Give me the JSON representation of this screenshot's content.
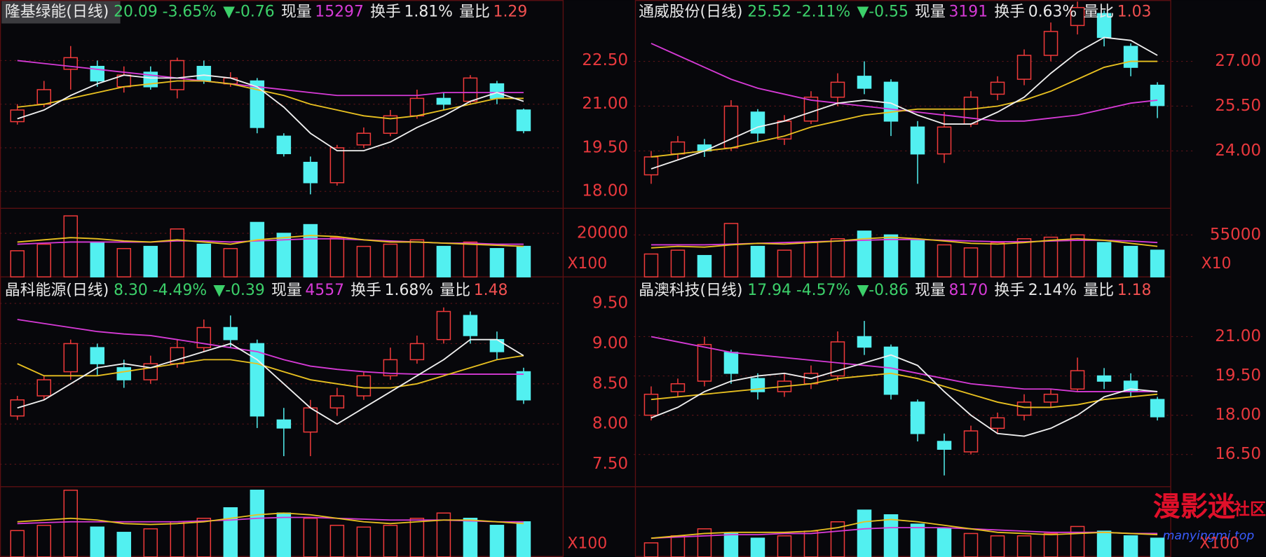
{
  "panels": [
    {
      "name": "隆基绿能(日线)",
      "price": "20.09",
      "change_pct": "-3.65%",
      "change": "▼-0.76",
      "vol_label": "现量",
      "volume": "15297",
      "turn_label": "换手",
      "turnover": "1.81%",
      "ratio_label": "量比",
      "ratio": "1.29",
      "ylim": [
        17.42,
        24.58
      ],
      "yticks": [
        {
          "value": 22.5,
          "label": "22.50"
        },
        {
          "value": 21,
          "label": "21.00"
        },
        {
          "value": 19.5,
          "label": "19.50"
        },
        {
          "value": 18,
          "label": "18.00"
        }
      ],
      "vol_ylim": [
        0,
        31480
      ],
      "vol_ticks": [
        20000
      ],
      "vol_unit": "X100",
      "candles": [
        [
          20.4,
          21.0,
          20.3,
          20.8
        ],
        [
          21.0,
          21.8,
          20.9,
          21.5
        ],
        [
          22.2,
          23.0,
          21.5,
          22.6
        ],
        [
          22.3,
          22.5,
          21.6,
          21.8
        ],
        [
          21.6,
          22.3,
          21.4,
          22.0
        ],
        [
          22.1,
          22.3,
          21.5,
          21.6
        ],
        [
          21.5,
          22.6,
          21.2,
          22.5
        ],
        [
          22.3,
          22.5,
          21.7,
          21.8
        ],
        [
          21.7,
          22.1,
          21.6,
          21.9
        ],
        [
          21.8,
          21.9,
          20.0,
          20.2
        ],
        [
          19.9,
          20.0,
          19.2,
          19.3
        ],
        [
          19.0,
          19.2,
          17.9,
          18.3
        ],
        [
          18.3,
          19.6,
          18.2,
          19.5
        ],
        [
          19.6,
          20.2,
          19.5,
          20.0
        ],
        [
          20.0,
          20.8,
          19.9,
          20.6
        ],
        [
          20.6,
          21.5,
          20.5,
          21.2
        ],
        [
          21.2,
          21.4,
          20.8,
          21.0
        ],
        [
          21.1,
          22.0,
          21.0,
          21.9
        ],
        [
          21.7,
          21.8,
          21.0,
          21.2
        ],
        [
          20.8,
          20.85,
          20.0,
          20.09
        ]
      ],
      "ma5": [
        20.5,
        20.8,
        21.3,
        21.7,
        22.0,
        21.9,
        21.9,
        22.0,
        21.9,
        21.6,
        20.9,
        20.0,
        19.4,
        19.4,
        19.7,
        20.2,
        20.6,
        21.1,
        21.4,
        21.1
      ],
      "ma20": [
        20.9,
        21.0,
        21.2,
        21.4,
        21.6,
        21.7,
        21.8,
        21.8,
        21.7,
        21.5,
        21.3,
        21.0,
        20.8,
        20.6,
        20.5,
        20.6,
        20.8,
        21.0,
        21.2,
        21.2
      ],
      "ma60": [
        22.5,
        22.4,
        22.3,
        22.2,
        22.1,
        22.0,
        21.9,
        21.8,
        21.7,
        21.6,
        21.5,
        21.4,
        21.3,
        21.3,
        21.3,
        21.3,
        21.4,
        21.4,
        21.4,
        21.4
      ],
      "vol": [
        12000,
        15000,
        28000,
        16000,
        13000,
        14000,
        22000,
        15000,
        13000,
        25000,
        20000,
        24000,
        18000,
        14000,
        15000,
        17000,
        14000,
        16000,
        13000,
        14000
      ],
      "vma1": [
        16000,
        17000,
        18000,
        17500,
        16500,
        16000,
        17000,
        16000,
        15000,
        17000,
        18000,
        19000,
        18500,
        17000,
        16000,
        16000,
        15500,
        15000,
        14500,
        14000
      ],
      "vma2": [
        15000,
        15500,
        16000,
        16000,
        16000,
        16000,
        16500,
        16500,
        16000,
        16500,
        17000,
        17500,
        17500,
        17000,
        16500,
        16000,
        15500,
        15500,
        15000,
        15000
      ]
    },
    {
      "name": "通威股份(日线)",
      "price": "25.52",
      "change_pct": "-2.11%",
      "change": "▼-0.55",
      "vol_label": "现量",
      "volume": "3191",
      "turn_label": "换手",
      "turnover": "0.63%",
      "ratio_label": "量比",
      "ratio": "1.03",
      "ylim": [
        22.08,
        29.05
      ],
      "yticks": [
        {
          "value": 27,
          "label": "27.00"
        },
        {
          "value": 25.5,
          "label": "25.50"
        },
        {
          "value": 24,
          "label": "24.00"
        }
      ],
      "vol_ylim": [
        0,
        89900
      ],
      "vol_ticks": [
        55000
      ],
      "vol_unit": "X10",
      "candles": [
        [
          23.2,
          24.0,
          22.9,
          23.8
        ],
        [
          23.9,
          24.5,
          23.7,
          24.3
        ],
        [
          24.2,
          24.4,
          23.8,
          24.0
        ],
        [
          24.1,
          25.7,
          24.0,
          25.5
        ],
        [
          25.3,
          25.4,
          24.3,
          24.6
        ],
        [
          24.4,
          25.2,
          24.2,
          25.0
        ],
        [
          25.0,
          26.0,
          24.9,
          25.8
        ],
        [
          25.8,
          26.6,
          25.5,
          26.3
        ],
        [
          26.5,
          27.0,
          25.9,
          26.1
        ],
        [
          26.3,
          26.4,
          24.5,
          25.0
        ],
        [
          24.8,
          25.0,
          22.9,
          23.9
        ],
        [
          23.9,
          25.3,
          23.6,
          24.8
        ],
        [
          24.9,
          26.0,
          24.8,
          25.8
        ],
        [
          25.9,
          26.5,
          25.7,
          26.3
        ],
        [
          26.4,
          27.4,
          26.2,
          27.2
        ],
        [
          27.2,
          28.3,
          27.0,
          28.0
        ],
        [
          28.2,
          29.0,
          27.9,
          28.8
        ],
        [
          28.6,
          28.7,
          27.5,
          27.8
        ],
        [
          27.5,
          27.6,
          26.5,
          26.8
        ],
        [
          26.2,
          26.3,
          25.1,
          25.52
        ]
      ],
      "ma5": [
        23.4,
        23.7,
        24.0,
        24.4,
        24.8,
        25.0,
        25.3,
        25.6,
        25.7,
        25.6,
        25.2,
        24.9,
        24.9,
        25.3,
        25.8,
        26.6,
        27.3,
        27.8,
        27.7,
        27.2
      ],
      "ma20": [
        23.8,
        23.9,
        24.0,
        24.1,
        24.3,
        24.5,
        24.8,
        25.0,
        25.2,
        25.3,
        25.4,
        25.4,
        25.4,
        25.5,
        25.7,
        26.0,
        26.4,
        26.8,
        27.0,
        27.0
      ],
      "ma60": [
        27.6,
        27.2,
        26.8,
        26.4,
        26.1,
        25.9,
        25.7,
        25.6,
        25.5,
        25.4,
        25.3,
        25.2,
        25.1,
        25.0,
        25.0,
        25.1,
        25.2,
        25.4,
        25.6,
        25.7
      ],
      "vol": [
        30000,
        35000,
        28000,
        70000,
        40000,
        35000,
        45000,
        50000,
        60000,
        55000,
        48000,
        42000,
        38000,
        45000,
        50000,
        52000,
        55000,
        45000,
        40000,
        35000
      ],
      "vma1": [
        38000,
        40000,
        39000,
        42000,
        44000,
        43000,
        45000,
        47000,
        50000,
        52000,
        50000,
        47000,
        44000,
        43000,
        45000,
        48000,
        50000,
        48000,
        44000,
        40000
      ],
      "vma2": [
        42000,
        42000,
        42000,
        43000,
        44000,
        45000,
        46000,
        47000,
        48000,
        49000,
        49000,
        48000,
        47000,
        46000,
        46000,
        47000,
        48000,
        48000,
        47000,
        45000
      ]
    },
    {
      "name": "晶科能源(日线)",
      "price": "8.30",
      "change_pct": "-4.49%",
      "change": "▼-0.39",
      "vol_label": "现量",
      "volume": "4557",
      "turn_label": "换手",
      "turnover": "1.68%",
      "ratio_label": "量比",
      "ratio": "1.48",
      "ylim": [
        7.22,
        9.81
      ],
      "yticks": [
        {
          "value": 9.5,
          "label": "9.50"
        },
        {
          "value": 9,
          "label": "9.00"
        },
        {
          "value": 8.5,
          "label": "8.50"
        },
        {
          "value": 8,
          "label": "8.00"
        },
        {
          "value": 7.5,
          "label": "7.50"
        }
      ],
      "vol_ylim": [
        0,
        40000
      ],
      "vol_ticks": [],
      "vol_unit": "X100",
      "candles": [
        [
          8.1,
          8.35,
          8.05,
          8.3
        ],
        [
          8.35,
          8.6,
          8.3,
          8.55
        ],
        [
          8.65,
          9.05,
          8.55,
          9.0
        ],
        [
          8.95,
          9.0,
          8.6,
          8.75
        ],
        [
          8.7,
          8.8,
          8.45,
          8.55
        ],
        [
          8.55,
          8.85,
          8.5,
          8.75
        ],
        [
          8.75,
          9.05,
          8.7,
          8.95
        ],
        [
          8.95,
          9.3,
          8.9,
          9.2
        ],
        [
          9.2,
          9.35,
          8.95,
          9.05
        ],
        [
          9.0,
          9.05,
          7.95,
          8.1
        ],
        [
          8.05,
          8.2,
          7.6,
          7.95
        ],
        [
          7.9,
          8.3,
          7.6,
          8.2
        ],
        [
          8.2,
          8.45,
          8.1,
          8.35
        ],
        [
          8.35,
          8.65,
          8.3,
          8.6
        ],
        [
          8.6,
          8.95,
          8.55,
          8.8
        ],
        [
          8.8,
          9.1,
          8.75,
          9.0
        ],
        [
          9.05,
          9.45,
          9.0,
          9.4
        ],
        [
          9.35,
          9.4,
          9.0,
          9.1
        ],
        [
          9.05,
          9.15,
          8.8,
          8.9
        ],
        [
          8.65,
          8.7,
          8.25,
          8.3
        ]
      ],
      "ma5": [
        8.2,
        8.3,
        8.5,
        8.7,
        8.75,
        8.7,
        8.8,
        8.9,
        9.0,
        8.8,
        8.5,
        8.2,
        8.0,
        8.2,
        8.4,
        8.6,
        8.8,
        9.05,
        9.05,
        8.85
      ],
      "ma20": [
        8.75,
        8.6,
        8.6,
        8.6,
        8.65,
        8.7,
        8.75,
        8.8,
        8.8,
        8.75,
        8.65,
        8.55,
        8.5,
        8.45,
        8.45,
        8.5,
        8.6,
        8.7,
        8.8,
        8.85
      ],
      "ma60": [
        9.3,
        9.25,
        9.2,
        9.15,
        9.12,
        9.1,
        9.05,
        9.0,
        8.95,
        8.9,
        8.8,
        8.72,
        8.68,
        8.65,
        8.63,
        8.62,
        8.62,
        8.62,
        8.62,
        8.62
      ],
      "vol": [
        15000,
        18000,
        38000,
        17000,
        14000,
        16000,
        20000,
        22000,
        28000,
        38000,
        25000,
        22000,
        18000,
        17000,
        18000,
        22000,
        25000,
        22000,
        18000,
        20000
      ],
      "vma1": [
        20000,
        21000,
        22000,
        21000,
        19000,
        18500,
        19000,
        20000,
        22000,
        24000,
        25000,
        24000,
        22000,
        20000,
        19000,
        20000,
        21000,
        21000,
        20000,
        19000
      ],
      "vma2": [
        19000,
        19500,
        20000,
        20000,
        20000,
        20000,
        20000,
        20500,
        21000,
        22000,
        22500,
        22500,
        22000,
        21500,
        21000,
        21000,
        21000,
        20500,
        20000,
        20000
      ]
    },
    {
      "name": "晶澳科技(日线)",
      "price": "17.94",
      "change_pct": "-4.57%",
      "change": "▼-0.86",
      "vol_label": "现量",
      "volume": "8170",
      "turn_label": "换手",
      "turnover": "2.14%",
      "ratio_label": "量比",
      "ratio": "1.18",
      "ylim": [
        15.27,
        23.22
      ],
      "yticks": [
        {
          "value": 21,
          "label": "21.00"
        },
        {
          "value": 19.5,
          "label": "19.50"
        },
        {
          "value": 18,
          "label": "18.00"
        },
        {
          "value": 16.5,
          "label": "16.50"
        }
      ],
      "vol_ylim": [
        0,
        30000
      ],
      "vol_ticks": [],
      "vol_unit": "X100",
      "candles": [
        [
          18.0,
          19.1,
          17.8,
          18.8
        ],
        [
          18.9,
          19.4,
          18.7,
          19.2
        ],
        [
          19.3,
          21.0,
          19.1,
          20.7
        ],
        [
          20.4,
          20.5,
          19.2,
          19.6
        ],
        [
          19.4,
          19.6,
          18.6,
          18.9
        ],
        [
          18.9,
          19.6,
          18.7,
          19.3
        ],
        [
          19.2,
          19.9,
          19.0,
          19.6
        ],
        [
          19.5,
          21.2,
          19.3,
          20.8
        ],
        [
          21.0,
          21.6,
          20.3,
          20.6
        ],
        [
          20.6,
          20.7,
          18.6,
          18.8
        ],
        [
          18.5,
          18.6,
          17.0,
          17.3
        ],
        [
          17.0,
          17.3,
          15.7,
          16.7
        ],
        [
          16.6,
          17.6,
          16.5,
          17.4
        ],
        [
          17.5,
          18.1,
          17.3,
          17.9
        ],
        [
          18.0,
          18.8,
          17.8,
          18.5
        ],
        [
          18.5,
          19.0,
          18.3,
          18.8
        ],
        [
          19.0,
          20.2,
          18.9,
          19.7
        ],
        [
          19.5,
          19.8,
          19.0,
          19.3
        ],
        [
          19.3,
          19.6,
          18.7,
          18.9
        ],
        [
          18.6,
          18.7,
          17.8,
          17.94
        ]
      ],
      "ma5": [
        17.9,
        18.3,
        18.9,
        19.3,
        19.5,
        19.6,
        19.4,
        19.7,
        20.0,
        20.3,
        19.9,
        18.9,
        18.0,
        17.3,
        17.2,
        17.5,
        18.0,
        18.7,
        19.0,
        18.9
      ],
      "ma20": [
        18.6,
        18.7,
        18.8,
        18.9,
        19.0,
        19.1,
        19.2,
        19.4,
        19.5,
        19.6,
        19.4,
        19.1,
        18.8,
        18.5,
        18.3,
        18.3,
        18.4,
        18.6,
        18.7,
        18.8
      ],
      "ma60": [
        21.0,
        20.8,
        20.6,
        20.4,
        20.3,
        20.2,
        20.1,
        20.0,
        19.9,
        19.8,
        19.6,
        19.4,
        19.2,
        19.1,
        19.0,
        19.0,
        18.9,
        18.9,
        18.9,
        18.9
      ],
      "vol": [
        6000,
        9000,
        12000,
        10000,
        8000,
        9000,
        11000,
        15000,
        20000,
        18000,
        14000,
        12000,
        10000,
        9000,
        9000,
        10000,
        13000,
        11000,
        9000,
        8000
      ],
      "vma1": [
        8000,
        9000,
        10000,
        10500,
        10500,
        10500,
        11000,
        12500,
        15000,
        16000,
        15000,
        13500,
        12000,
        10500,
        10000,
        9500,
        10000,
        10500,
        10000,
        9500
      ],
      "vma2": [
        8000,
        8500,
        9000,
        9500,
        9500,
        10000,
        10000,
        11000,
        12000,
        12500,
        12500,
        12500,
        12000,
        11500,
        11000,
        10500,
        10500,
        10500,
        10000,
        10000
      ]
    }
  ],
  "watermark": {
    "logo": "漫影迷",
    "sub": "社区",
    "url": "manyingmi.top"
  }
}
